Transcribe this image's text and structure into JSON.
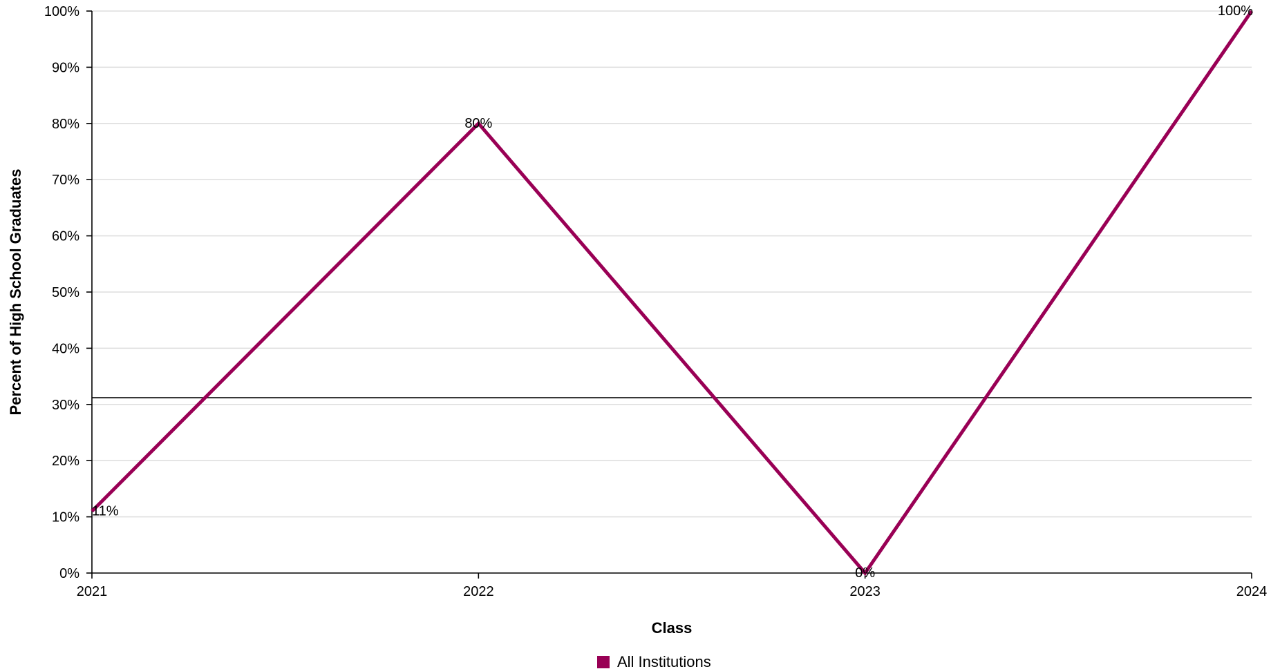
{
  "chart_data": {
    "type": "line",
    "categories": [
      "2021",
      "2022",
      "2023",
      "2024"
    ],
    "series": [
      {
        "name": "All Institutions",
        "values": [
          11,
          80,
          0,
          100
        ],
        "data_labels": [
          "11%",
          "80%",
          "0%",
          "100%"
        ],
        "color": "#990055"
      }
    ],
    "reference_line": {
      "value": 31.2,
      "color": "#000000"
    },
    "xlabel": "Class",
    "ylabel": "Percent of High School Graduates",
    "ylim": [
      0,
      100
    ],
    "yticks": [
      0,
      10,
      20,
      30,
      40,
      50,
      60,
      70,
      80,
      90,
      100
    ],
    "ytick_labels": [
      "0%",
      "10%",
      "20%",
      "30%",
      "40%",
      "50%",
      "60%",
      "70%",
      "80%",
      "90%",
      "100%"
    ],
    "grid": true,
    "gridline_color": "#dddddd",
    "legend_position": "bottom-center"
  }
}
